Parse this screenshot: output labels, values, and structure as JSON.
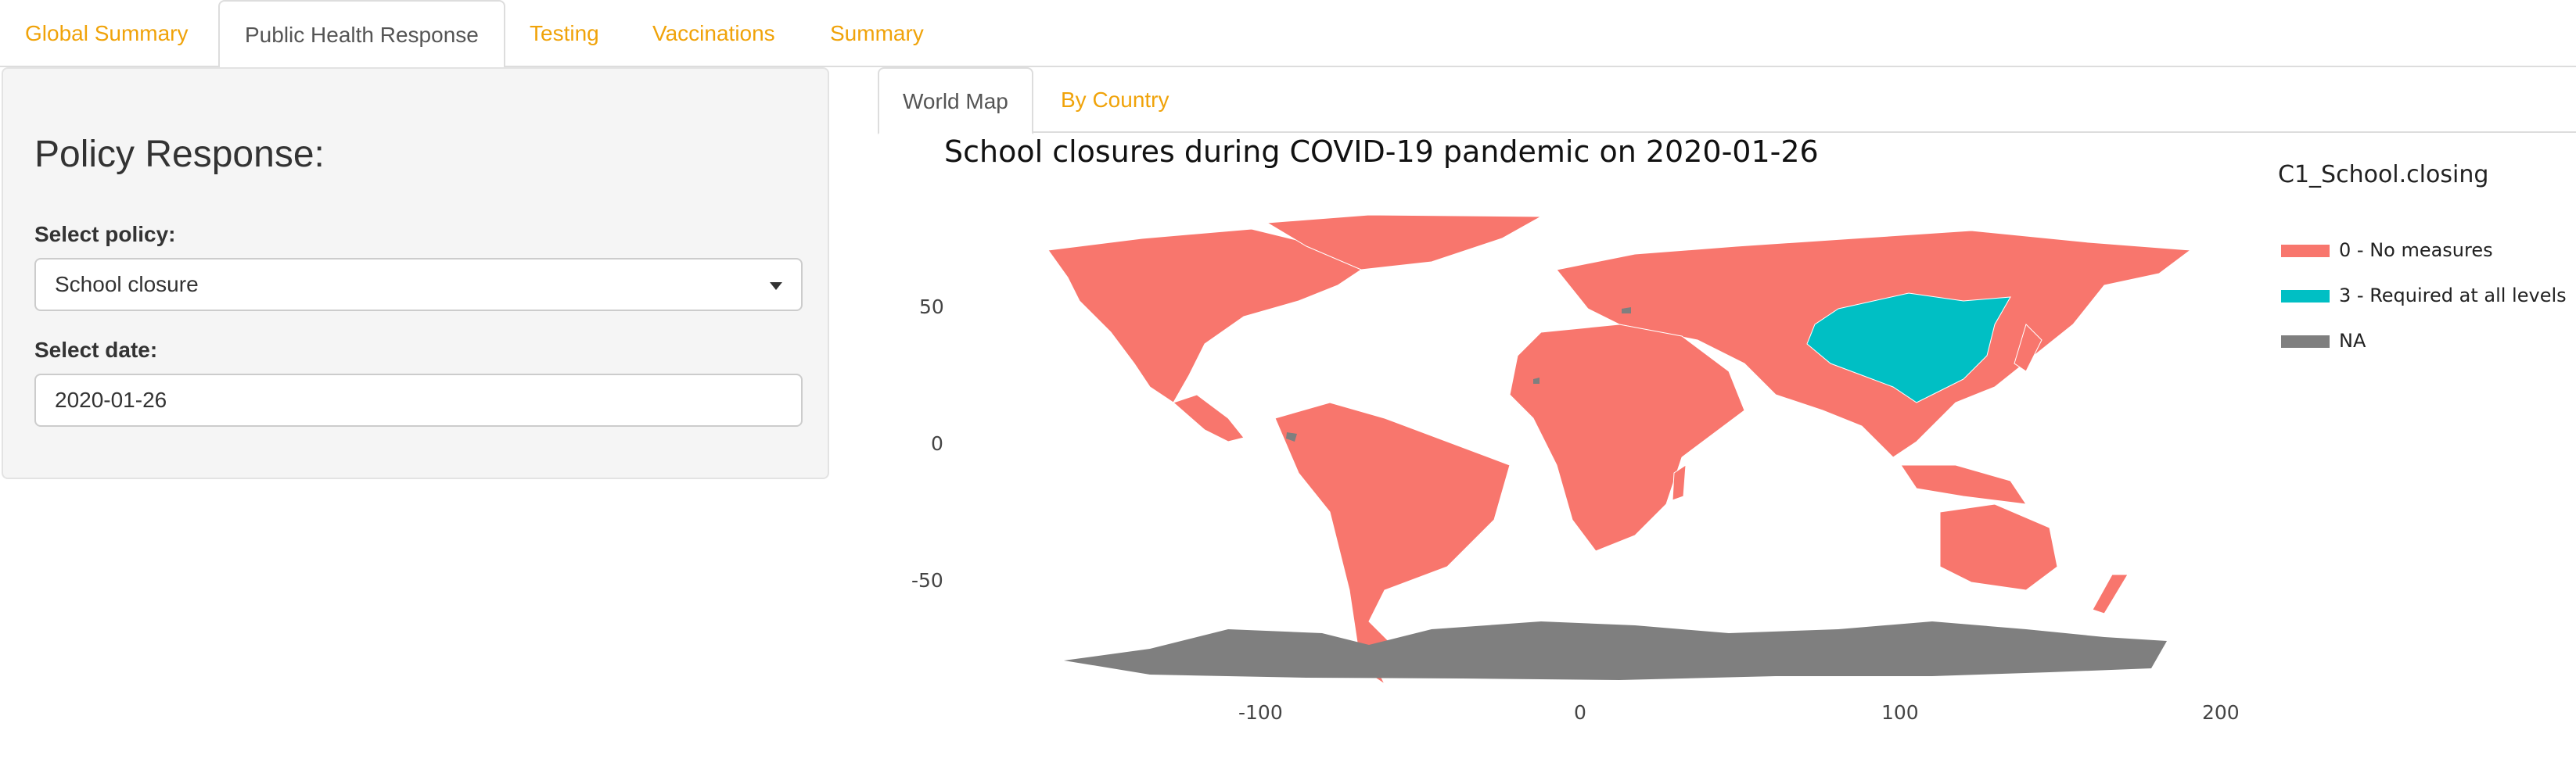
{
  "nav": {
    "tabs": [
      {
        "label": "Global Summary",
        "active": false
      },
      {
        "label": "Public Health Response",
        "active": true
      },
      {
        "label": "Testing",
        "active": false
      },
      {
        "label": "Vaccinations",
        "active": false
      },
      {
        "label": "Summary",
        "active": false
      }
    ]
  },
  "sidebar": {
    "heading": "Policy Response:",
    "policy_label": "Select policy:",
    "policy_value": "School closure",
    "date_label": "Select date:",
    "date_value": "2020-01-26"
  },
  "subtabs": [
    {
      "label": "World Map",
      "active": true
    },
    {
      "label": "By Country",
      "active": false
    }
  ],
  "map": {
    "title": "School closures during COVID-19 pandemic on 2020-01-26",
    "y_ticks": [
      "50",
      "0",
      "-50"
    ],
    "x_ticks": [
      "-100",
      "0",
      "100",
      "200"
    ],
    "legend_title": "C1_School.closing",
    "legend": [
      {
        "label": "0 - No measures",
        "color": "#f8766d"
      },
      {
        "label": "3 - Required at all levels",
        "color": "#00bfc4"
      },
      {
        "label": "NA",
        "color": "#7f7f7f"
      }
    ]
  }
}
